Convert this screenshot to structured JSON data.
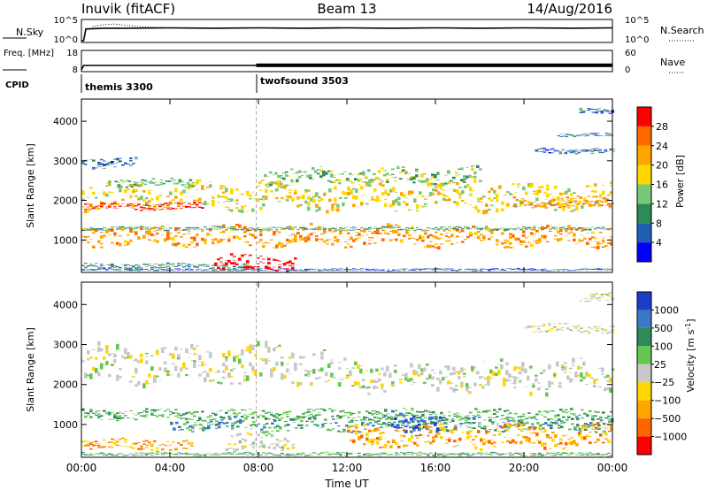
{
  "header": {
    "station": "Inuvik (fitACF)",
    "beam": "Beam 13",
    "date": "14/Aug/2016"
  },
  "chart_data": [
    {
      "type": "line",
      "panel": "noise",
      "ylabel": "N.Sky",
      "ylabel_right": "N.Search",
      "y_ticks_left": [
        "10^5",
        "10^0"
      ],
      "y_ticks_right": [
        "10^5",
        "10^0"
      ],
      "x_range": [
        0,
        24
      ],
      "series": [
        {
          "style": "solid",
          "x": [
            0.0,
            0.1,
            0.2,
            1.0,
            2.0,
            4.0,
            6.0,
            8.0,
            10.0,
            12.0,
            14.0,
            16.0,
            18.0,
            20.0,
            22.0,
            24.0
          ],
          "y": [
            0.0,
            0.0,
            3.0,
            3.2,
            3.2,
            3.3,
            3.2,
            3.3,
            3.2,
            3.3,
            3.2,
            3.3,
            3.2,
            3.3,
            3.2,
            3.3
          ]
        },
        {
          "style": "dotted",
          "x": [
            0.5,
            1.0,
            1.5,
            2.0,
            2.5,
            3.0,
            3.5,
            4.0
          ],
          "y": [
            3.6,
            4.1,
            4.3,
            3.9,
            3.7,
            3.5,
            3.4,
            3.3
          ]
        }
      ]
    },
    {
      "type": "line",
      "panel": "frequency",
      "ylabel": "Freq. [MHz]",
      "ylabel_right": "Nave",
      "y_ticks_left": [
        "18",
        "8"
      ],
      "y_ticks_right": [
        "60",
        "0"
      ],
      "x_range": [
        0,
        24
      ],
      "series": [
        {
          "style": "solid",
          "x": [
            0.0,
            0.1,
            24.0
          ],
          "y": [
            8.0,
            10.5,
            10.5
          ]
        },
        {
          "style": "band",
          "x": [
            7.9,
            24.0
          ],
          "y_low": [
            9.6,
            9.6
          ],
          "y_high": [
            11.6,
            11.6
          ]
        }
      ]
    },
    {
      "type": "table",
      "panel": "cpid",
      "ylabel": "CPID",
      "segments": [
        {
          "start": 0.0,
          "name": "themis 3300"
        },
        {
          "start": 7.9,
          "name": "twofsound 3503"
        }
      ]
    },
    {
      "type": "heatmap",
      "panel": "power",
      "ylabel": "Slant Range [km]",
      "xlabel": "",
      "y_ticks": [
        1000,
        2000,
        3000,
        4000
      ],
      "ylim": [
        180,
        4560
      ],
      "x_range": [
        0,
        24
      ],
      "colorbar": {
        "label": "Power [dB]",
        "ticks": [
          4,
          8,
          12,
          16,
          20,
          24,
          28
        ],
        "colors": [
          "#0000ff",
          "#1e5fb4",
          "#2e8a57",
          "#78c878",
          "#ffd700",
          "#ffa500",
          "#ff6a00",
          "#ff0000"
        ],
        "range": [
          0,
          32
        ]
      },
      "features": [
        {
          "t0": 0.0,
          "t1": 24.0,
          "rc": 250,
          "rw": 25,
          "v": 4
        },
        {
          "t0": 0.0,
          "t1": 7.5,
          "rc": 340,
          "rw": 60,
          "v": 7
        },
        {
          "t0": 6.0,
          "t1": 9.6,
          "rc": 420,
          "rw": 180,
          "v": 30
        },
        {
          "t0": 0.0,
          "t1": 24.0,
          "rc": 1100,
          "rw": 230,
          "v": 21
        },
        {
          "t0": 0.0,
          "t1": 24.0,
          "rc": 1290,
          "rw": 40,
          "v": 9
        },
        {
          "t0": 0.0,
          "t1": 24.0,
          "rc": 2100,
          "rw": 300,
          "v": 16
        },
        {
          "t0": 0.0,
          "t1": 5.5,
          "rc": 1850,
          "rw": 80,
          "v": 27
        },
        {
          "t0": 19.5,
          "t1": 24.0,
          "rc": 1950,
          "rw": 120,
          "v": 22
        },
        {
          "t0": 1.5,
          "t1": 5.0,
          "rc": 2450,
          "rw": 100,
          "v": 10
        },
        {
          "t0": 8.0,
          "t1": 18.0,
          "rc": 2600,
          "rw": 200,
          "v": 12
        },
        {
          "t0": 0.0,
          "t1": 2.5,
          "rc": 2950,
          "rw": 120,
          "v": 4
        },
        {
          "t0": 20.5,
          "t1": 24.0,
          "rc": 3250,
          "rw": 60,
          "v": 4
        },
        {
          "t0": 21.5,
          "t1": 24.0,
          "rc": 3650,
          "rw": 40,
          "v": 5
        },
        {
          "t0": 22.5,
          "t1": 24.0,
          "rc": 4250,
          "rw": 60,
          "v": 5
        }
      ]
    },
    {
      "type": "heatmap",
      "panel": "velocity",
      "ylabel": "Slant Range [km]",
      "xlabel": "Time UT",
      "x_ticks": [
        "00:00",
        "04:00",
        "08:00",
        "12:00",
        "16:00",
        "20:00",
        "00:00"
      ],
      "y_ticks": [
        1000,
        2000,
        3000,
        4000
      ],
      "ylim": [
        180,
        4560
      ],
      "x_range": [
        0,
        24
      ],
      "colorbar": {
        "label": "Velocity [m s-1]",
        "ticks": [
          1000,
          500,
          100,
          25,
          -25,
          -100,
          -500,
          -1000
        ],
        "colors": [
          "#1e3cc8",
          "#3c78c8",
          "#2e8a57",
          "#64c850",
          "#c8c8c8",
          "#ffd700",
          "#ffa500",
          "#ff6400",
          "#ff0000"
        ]
      },
      "features": [
        {
          "t0": 0.0,
          "t1": 11.0,
          "rc": 2500,
          "rw": 420,
          "v": "gray"
        },
        {
          "t0": 11.0,
          "t1": 24.0,
          "rc": 2200,
          "rw": 350,
          "v": "gray"
        },
        {
          "t0": 0.0,
          "t1": 24.0,
          "rc": 1250,
          "rw": 120,
          "v": "green"
        },
        {
          "t0": 4.0,
          "t1": 24.0,
          "rc": 1000,
          "rw": 150,
          "v": "teal"
        },
        {
          "t0": 14.0,
          "t1": 16.5,
          "rc": 1050,
          "rw": 250,
          "v": "blue"
        },
        {
          "t0": 0.0,
          "t1": 5.0,
          "rc": 500,
          "rw": 120,
          "v": "orange"
        },
        {
          "t0": 12.0,
          "t1": 24.0,
          "rc": 700,
          "rw": 250,
          "v": "orange"
        },
        {
          "t0": 6.5,
          "t1": 9.5,
          "rc": 550,
          "rw": 200,
          "v": "gray"
        },
        {
          "t0": 0.0,
          "t1": 24.0,
          "rc": 260,
          "rw": 40,
          "v": "green"
        },
        {
          "t0": 20.0,
          "t1": 24.0,
          "rc": 3400,
          "rw": 100,
          "v": "gray"
        },
        {
          "t0": 22.5,
          "t1": 24.0,
          "rc": 4200,
          "rw": 100,
          "v": "gray"
        }
      ]
    }
  ]
}
